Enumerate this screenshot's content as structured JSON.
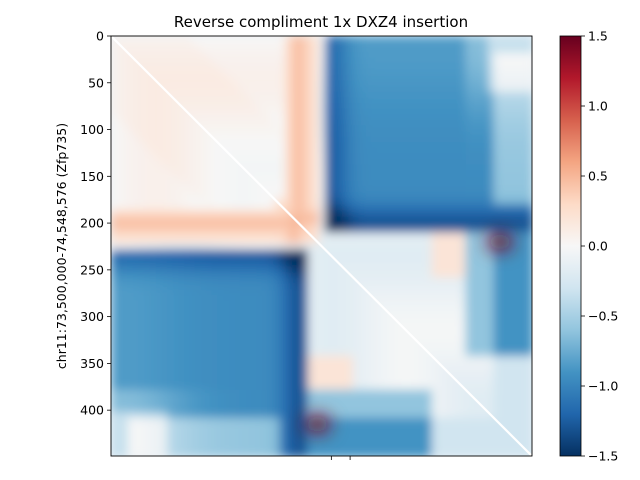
{
  "chart_data": {
    "type": "heatmap",
    "title": "Reverse compliment 1x DXZ4 insertion",
    "xlabel": "",
    "ylabel": "chr11:73,500,000-74,548,576 (Zfp735)",
    "matrix_size": 449,
    "xlim": [
      0,
      449
    ],
    "ylim": [
      449,
      0
    ],
    "yticks": [
      0,
      50,
      100,
      150,
      200,
      250,
      300,
      350,
      400
    ],
    "xticks_unlabeled": [
      235,
      255
    ],
    "colormap": "RdBu_r",
    "colorbar": {
      "vmin": -1.5,
      "vmax": 1.5,
      "ticks": [
        1.5,
        1.0,
        0.5,
        0.0,
        -0.5,
        -1.0,
        -1.5
      ]
    },
    "diagonal": "white",
    "features": [
      {
        "type": "boundary",
        "position": 220
      },
      {
        "type": "block",
        "rows": [
          0,
          210
        ],
        "cols": [
          220,
          449
        ],
        "value": -1.0
      },
      {
        "type": "block",
        "rows": [
          220,
          449
        ],
        "cols": [
          0,
          210
        ],
        "value": -1.0
      },
      {
        "type": "stripe",
        "rows": [
          180,
          230
        ],
        "cols": [
          0,
          210
        ],
        "value": 0.6
      },
      {
        "type": "stripe",
        "rows": [
          0,
          210
        ],
        "cols": [
          180,
          220
        ],
        "value": 0.6
      },
      {
        "type": "dot",
        "row": 220,
        "col": 415,
        "value": 1.4
      },
      {
        "type": "dot",
        "row": 415,
        "col": 220,
        "value": 1.4
      }
    ]
  },
  "colors": {
    "neg_max": "#053061",
    "neg_mid": "#4393c3",
    "center": "#f7f7f7",
    "pos_mid": "#d6604d",
    "pos_max": "#67001f"
  }
}
